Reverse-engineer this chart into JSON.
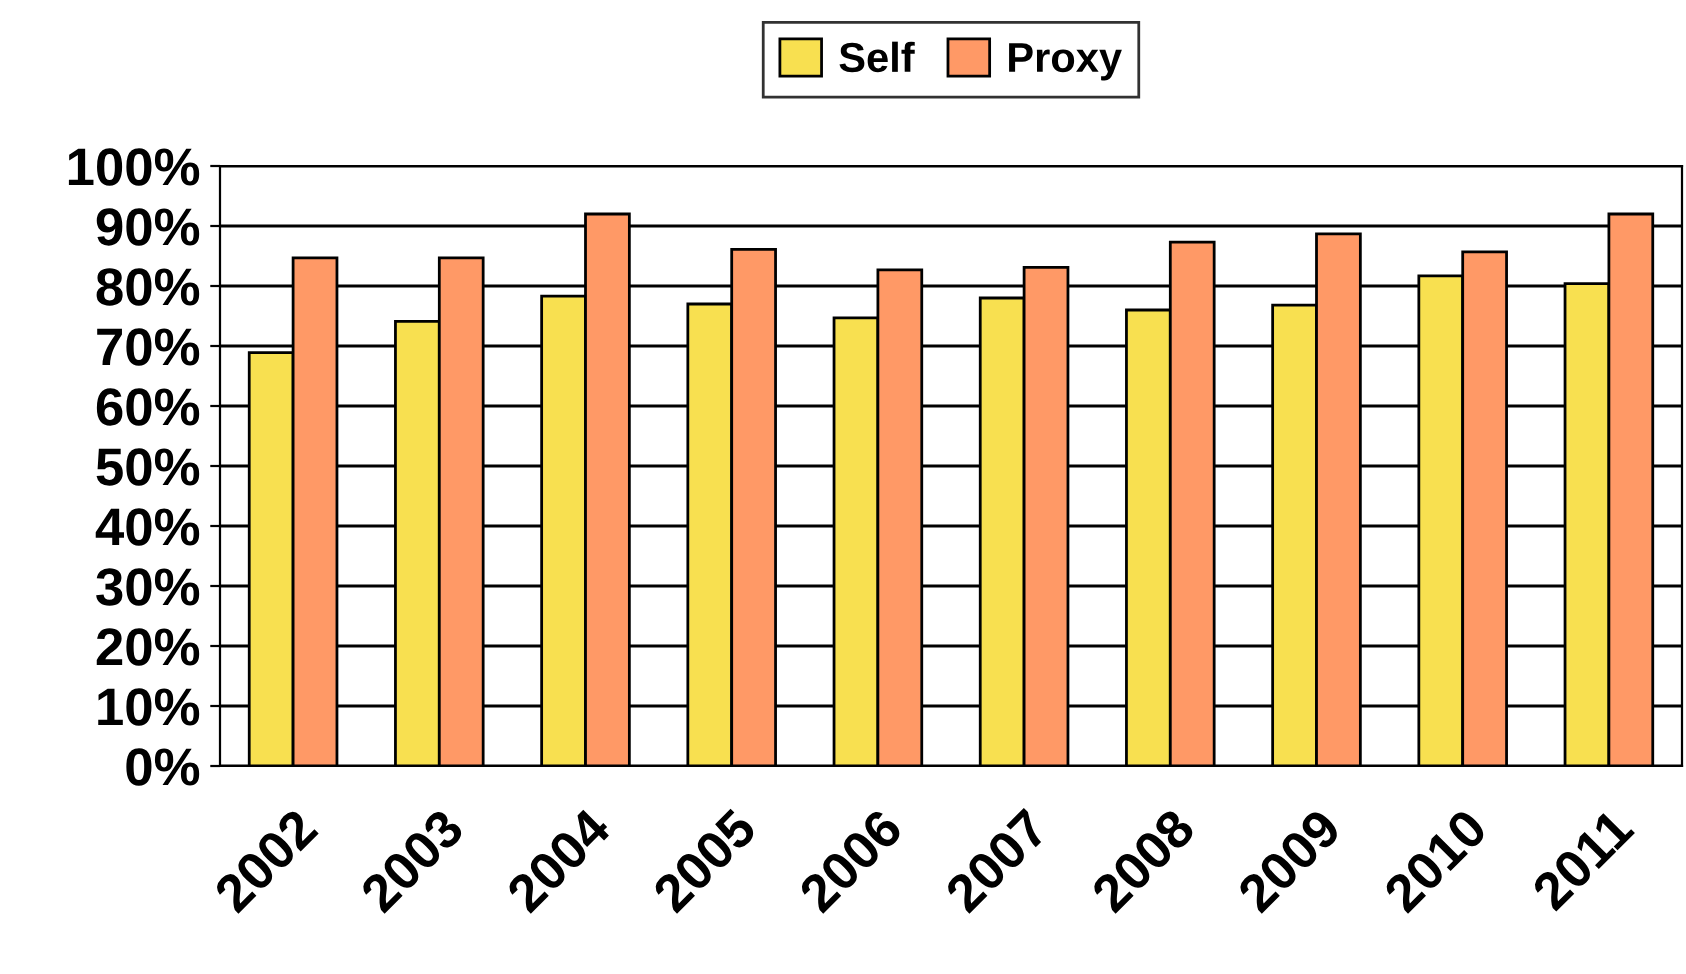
{
  "chart_data": {
    "type": "bar",
    "categories": [
      "2002",
      "2003",
      "2004",
      "2005",
      "2006",
      "2007",
      "2008",
      "2009",
      "2010",
      "2011"
    ],
    "series": [
      {
        "name": "Self",
        "color": "#f8e050",
        "values": [
          68.9,
          74.1,
          78.3,
          77.0,
          74.7,
          78.0,
          76.0,
          76.8,
          81.7,
          80.4
        ]
      },
      {
        "name": "Proxy",
        "color": "#ff9966",
        "values": [
          84.7,
          84.7,
          92.0,
          86.1,
          82.7,
          83.1,
          87.3,
          88.7,
          85.7,
          92.0
        ]
      }
    ],
    "ylim": [
      0,
      100
    ],
    "yticks": [
      {
        "value": 0,
        "label": "0%"
      },
      {
        "value": 10,
        "label": "10%"
      },
      {
        "value": 20,
        "label": "20%"
      },
      {
        "value": 30,
        "label": "30%"
      },
      {
        "value": 40,
        "label": "40%"
      },
      {
        "value": 50,
        "label": "50%"
      },
      {
        "value": 60,
        "label": "60%"
      },
      {
        "value": 70,
        "label": "70%"
      },
      {
        "value": 80,
        "label": "80%"
      },
      {
        "value": 90,
        "label": "90%"
      },
      {
        "value": 100,
        "label": "100%"
      }
    ],
    "grid": "y",
    "legend": "top"
  }
}
